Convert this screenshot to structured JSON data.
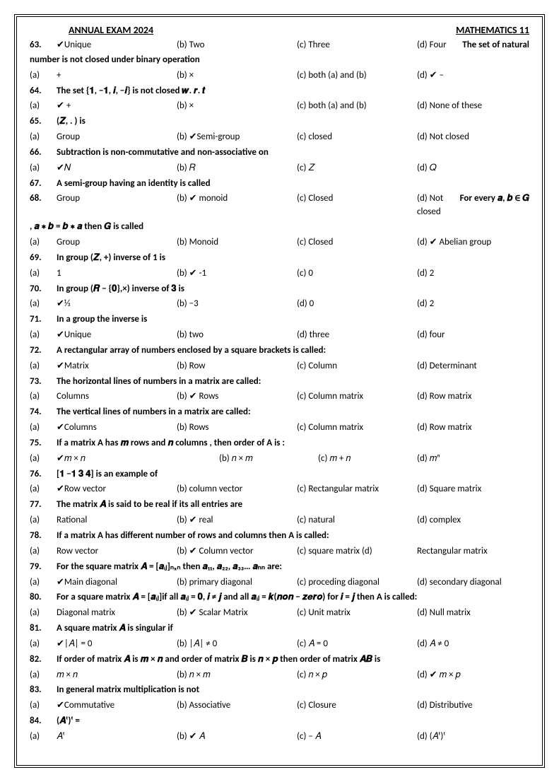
{
  "header": {
    "title": "ANNUAL EXAM  2024",
    "subject": "MATHEMATICS    11"
  },
  "check_mark": "✔",
  "items": [
    {
      "type": "opts",
      "num": "63.",
      "a": "✔Unique",
      "b": "(b) Two",
      "c": "(c) Three",
      "d": "(d) Four",
      "trail": "The set of natural"
    },
    {
      "type": "cont",
      "text": "number is not closed under binary operation"
    },
    {
      "type": "opts",
      "num": "(a)",
      "num_normal": true,
      "a": "+",
      "b": "(b) ×",
      "c": "(c) both (a) and (b)",
      "d": "(d)  ✔  –"
    },
    {
      "type": "q",
      "num": "64.",
      "text": "The set {𝟏, −𝟏, 𝒊, −𝒊} is not closed 𝒘. 𝒓. 𝒕"
    },
    {
      "type": "opts",
      "num": "(a)",
      "num_normal": true,
      "a": "✔  +",
      "b": "(b) ×",
      "c": "(c) both (a) and (b)",
      "d": "(d) None of these"
    },
    {
      "type": "q",
      "num": "65.",
      "text": "(𝒁, . ) is"
    },
    {
      "type": "opts",
      "num": "(a)",
      "num_normal": true,
      "a": "Group",
      "b": "(b) ✔Semi-group",
      "c": "(c) closed",
      "d": "(d) Not closed"
    },
    {
      "type": "q",
      "num": "66.",
      "text": "Subtraction is non-commutative and non-associative on"
    },
    {
      "type": "opts",
      "num": "(a)",
      "num_normal": true,
      "a": "✔𝑁",
      "b": "(b) 𝑅",
      "c": "(c) 𝑍",
      "d": "(d) 𝑄"
    },
    {
      "type": "q",
      "num": "67.",
      "text": "A semi-group having an identity is called"
    },
    {
      "type": "opts",
      "num": "68.",
      "a": "Group",
      "b": "(b)  ✔  monoid",
      "c": "(c) Closed",
      "d": "(d) Not closed",
      "trail": "For every 𝒂, 𝒃 ∈ 𝑮"
    },
    {
      "type": "cont",
      "text": ", 𝒂 ∗ 𝒃 = 𝒃 ∗ 𝒂 then 𝑮 is called"
    },
    {
      "type": "opts",
      "num": "(a)",
      "num_normal": true,
      "a": "Group",
      "b": "(b) Monoid",
      "c": "(c) Closed",
      "d": "(d)  ✔  Abelian group"
    },
    {
      "type": "q",
      "num": "69.",
      "text": "In group (𝒁, +) inverse of 1 is"
    },
    {
      "type": "opts",
      "num": "(a)",
      "num_normal": true,
      "a": "1",
      "b": "(b)  ✔  -1",
      "c": "(c) 0",
      "d": "(d) 2"
    },
    {
      "type": "q",
      "num": "70.",
      "text": "In group (𝑹 − {𝟎},×) inverse of 𝟑 is"
    },
    {
      "type": "opts",
      "num": "(a)",
      "num_normal": true,
      "a": "✔⅓",
      "b": "(b) −3",
      "c": "(d) 0",
      "d": "(d) 2"
    },
    {
      "type": "q",
      "num": "71.",
      "text": "In a group the inverse is"
    },
    {
      "type": "opts",
      "num": "(a)",
      "num_normal": true,
      "a": "✔Unique",
      "b": "(b) two",
      "c": "(d) three",
      "d": "(d) four"
    },
    {
      "type": "q",
      "num": "72.",
      "text": "A rectangular array of numbers enclosed by a square brackets is called:"
    },
    {
      "type": "opts",
      "num": "(a)",
      "num_normal": true,
      "a": "✔Matrix",
      "b": "(b) Row",
      "c": "(c) Column",
      "d": "(d) Determinant"
    },
    {
      "type": "q",
      "num": "73.",
      "text": "The horizontal lines of numbers in a matrix are called:"
    },
    {
      "type": "opts",
      "num": "(a)",
      "num_normal": true,
      "a": "Columns",
      "b": "(b)  ✔    Rows",
      "c": "(c) Column matrix",
      "d": "(d) Row matrix"
    },
    {
      "type": "q",
      "num": "74.",
      "text": "The vertical lines of numbers in a matrix are called:"
    },
    {
      "type": "opts",
      "num": "(a)",
      "num_normal": true,
      "a": "✔Columns",
      "b": "(b) Rows",
      "c": "(c) Column matrix",
      "d": "(d) Row matrix"
    },
    {
      "type": "q",
      "num": "75.",
      "text": "If a matrix A has 𝒎 rows and 𝒏 columns , then order of A is :"
    },
    {
      "type": "opts",
      "num": "(a)",
      "num_normal": true,
      "a": "✔𝑚 × 𝑛",
      "b_wide": true,
      "b": "(b) 𝑛 × 𝑚",
      "c": "(c) 𝑚 + 𝑛",
      "d": "(d) 𝑚ⁿ"
    },
    {
      "type": "q",
      "num": "76.",
      "text": "[𝟏    −𝟏    𝟑    𝟒] is an example of"
    },
    {
      "type": "opts",
      "num": "(a)",
      "num_normal": true,
      "a": "✔Row vector",
      "b": "(b) column vector",
      "c": "(c) Rectangular matrix",
      "d": "(d) Square matrix"
    },
    {
      "type": "q",
      "num": "77.",
      "text": "The matrix 𝑨 is said to be real if its all entries are"
    },
    {
      "type": "opts",
      "num": "(a)",
      "num_normal": true,
      "a": "Rational",
      "b": "(b)  ✔  real",
      "c": "(c) natural",
      "d": "(d) complex"
    },
    {
      "type": "q",
      "num": "78.",
      "text": "If a matrix A has different number of rows and columns then A is called:"
    },
    {
      "type": "opts",
      "num": "(a)",
      "num_normal": true,
      "a": "Row vector",
      "b": "(b)  ✔   Column vector",
      "c": "(c) square matrix  (d)",
      "d": "Rectangular matrix"
    },
    {
      "type": "q",
      "num": "79.",
      "text": "For the square matrix 𝑨 = [𝒂ᵢⱼ]ₙₓₙ then 𝒂₁₁, 𝒂₂₂, 𝒂₃₃… 𝒂ₙₙ are:"
    },
    {
      "type": "opts",
      "num": "(a)",
      "num_normal": true,
      "a": "✔Main diagonal",
      "b": "(b) primary diagonal",
      "c": "(c) proceding diagonal",
      "d": "(d) secondary diagonal"
    },
    {
      "type": "q",
      "num": "80.",
      "text": "For a square matrix 𝑨 = [𝒂ᵢⱼ]if all 𝒂ᵢⱼ = 𝟎, 𝒊 ≠ 𝒋  and all 𝒂ᵢⱼ = 𝒌(𝒏𝒐𝒏 − 𝒛𝒆𝒓𝒐) for 𝒊 = 𝒋 then A is called:"
    },
    {
      "type": "opts",
      "num": "(a)",
      "num_normal": true,
      "a": "Diagonal matrix",
      "b": "(b)  ✔  Scalar Matrix",
      "c": "(c) Unit matrix",
      "d": "(d) Null matrix"
    },
    {
      "type": "q",
      "num": "81.",
      "text": "A square matrix 𝑨 is singular if"
    },
    {
      "type": "opts",
      "num": "(a)",
      "num_normal": true,
      "a": "✔|𝐴| = 0",
      "b": "(b) |𝐴| ≠ 0",
      "c": "(c) 𝐴 = 0",
      "d": "(d) 𝐴 ≠ 0"
    },
    {
      "type": "q",
      "num": "82.",
      "text": "If order of matrix 𝑨 is 𝒎  × 𝒏 and order of matrix 𝑩 is 𝒏 × 𝒑 then order of matrix 𝑨𝑩 is"
    },
    {
      "type": "opts",
      "num": "(a)",
      "num_normal": true,
      "a": "𝑚  × 𝑛",
      "b": "(b) 𝑛 × 𝑚",
      "c": "(c) 𝑛  × 𝑝",
      "d": "(d)  ✔ 𝑚 × 𝑝"
    },
    {
      "type": "q",
      "num": "83.",
      "text": "In general matrix multiplication is not"
    },
    {
      "type": "opts",
      "num": "(a)",
      "num_normal": true,
      "a": "✔Commutative",
      "b": "(b) Associative",
      "c": "(c) Closure",
      "d": "(d) Distributive"
    },
    {
      "type": "q",
      "num": "84.",
      "text": "(𝑨ᵗ)ᵗ ="
    },
    {
      "type": "opts",
      "num": "(a)",
      "num_normal": true,
      "a": "𝐴ᵗ",
      "b": "(b)  ✔ 𝐴",
      "c": "(c) – 𝐴",
      "d": "(d) (𝐴ᵗ)ᵗ"
    }
  ]
}
